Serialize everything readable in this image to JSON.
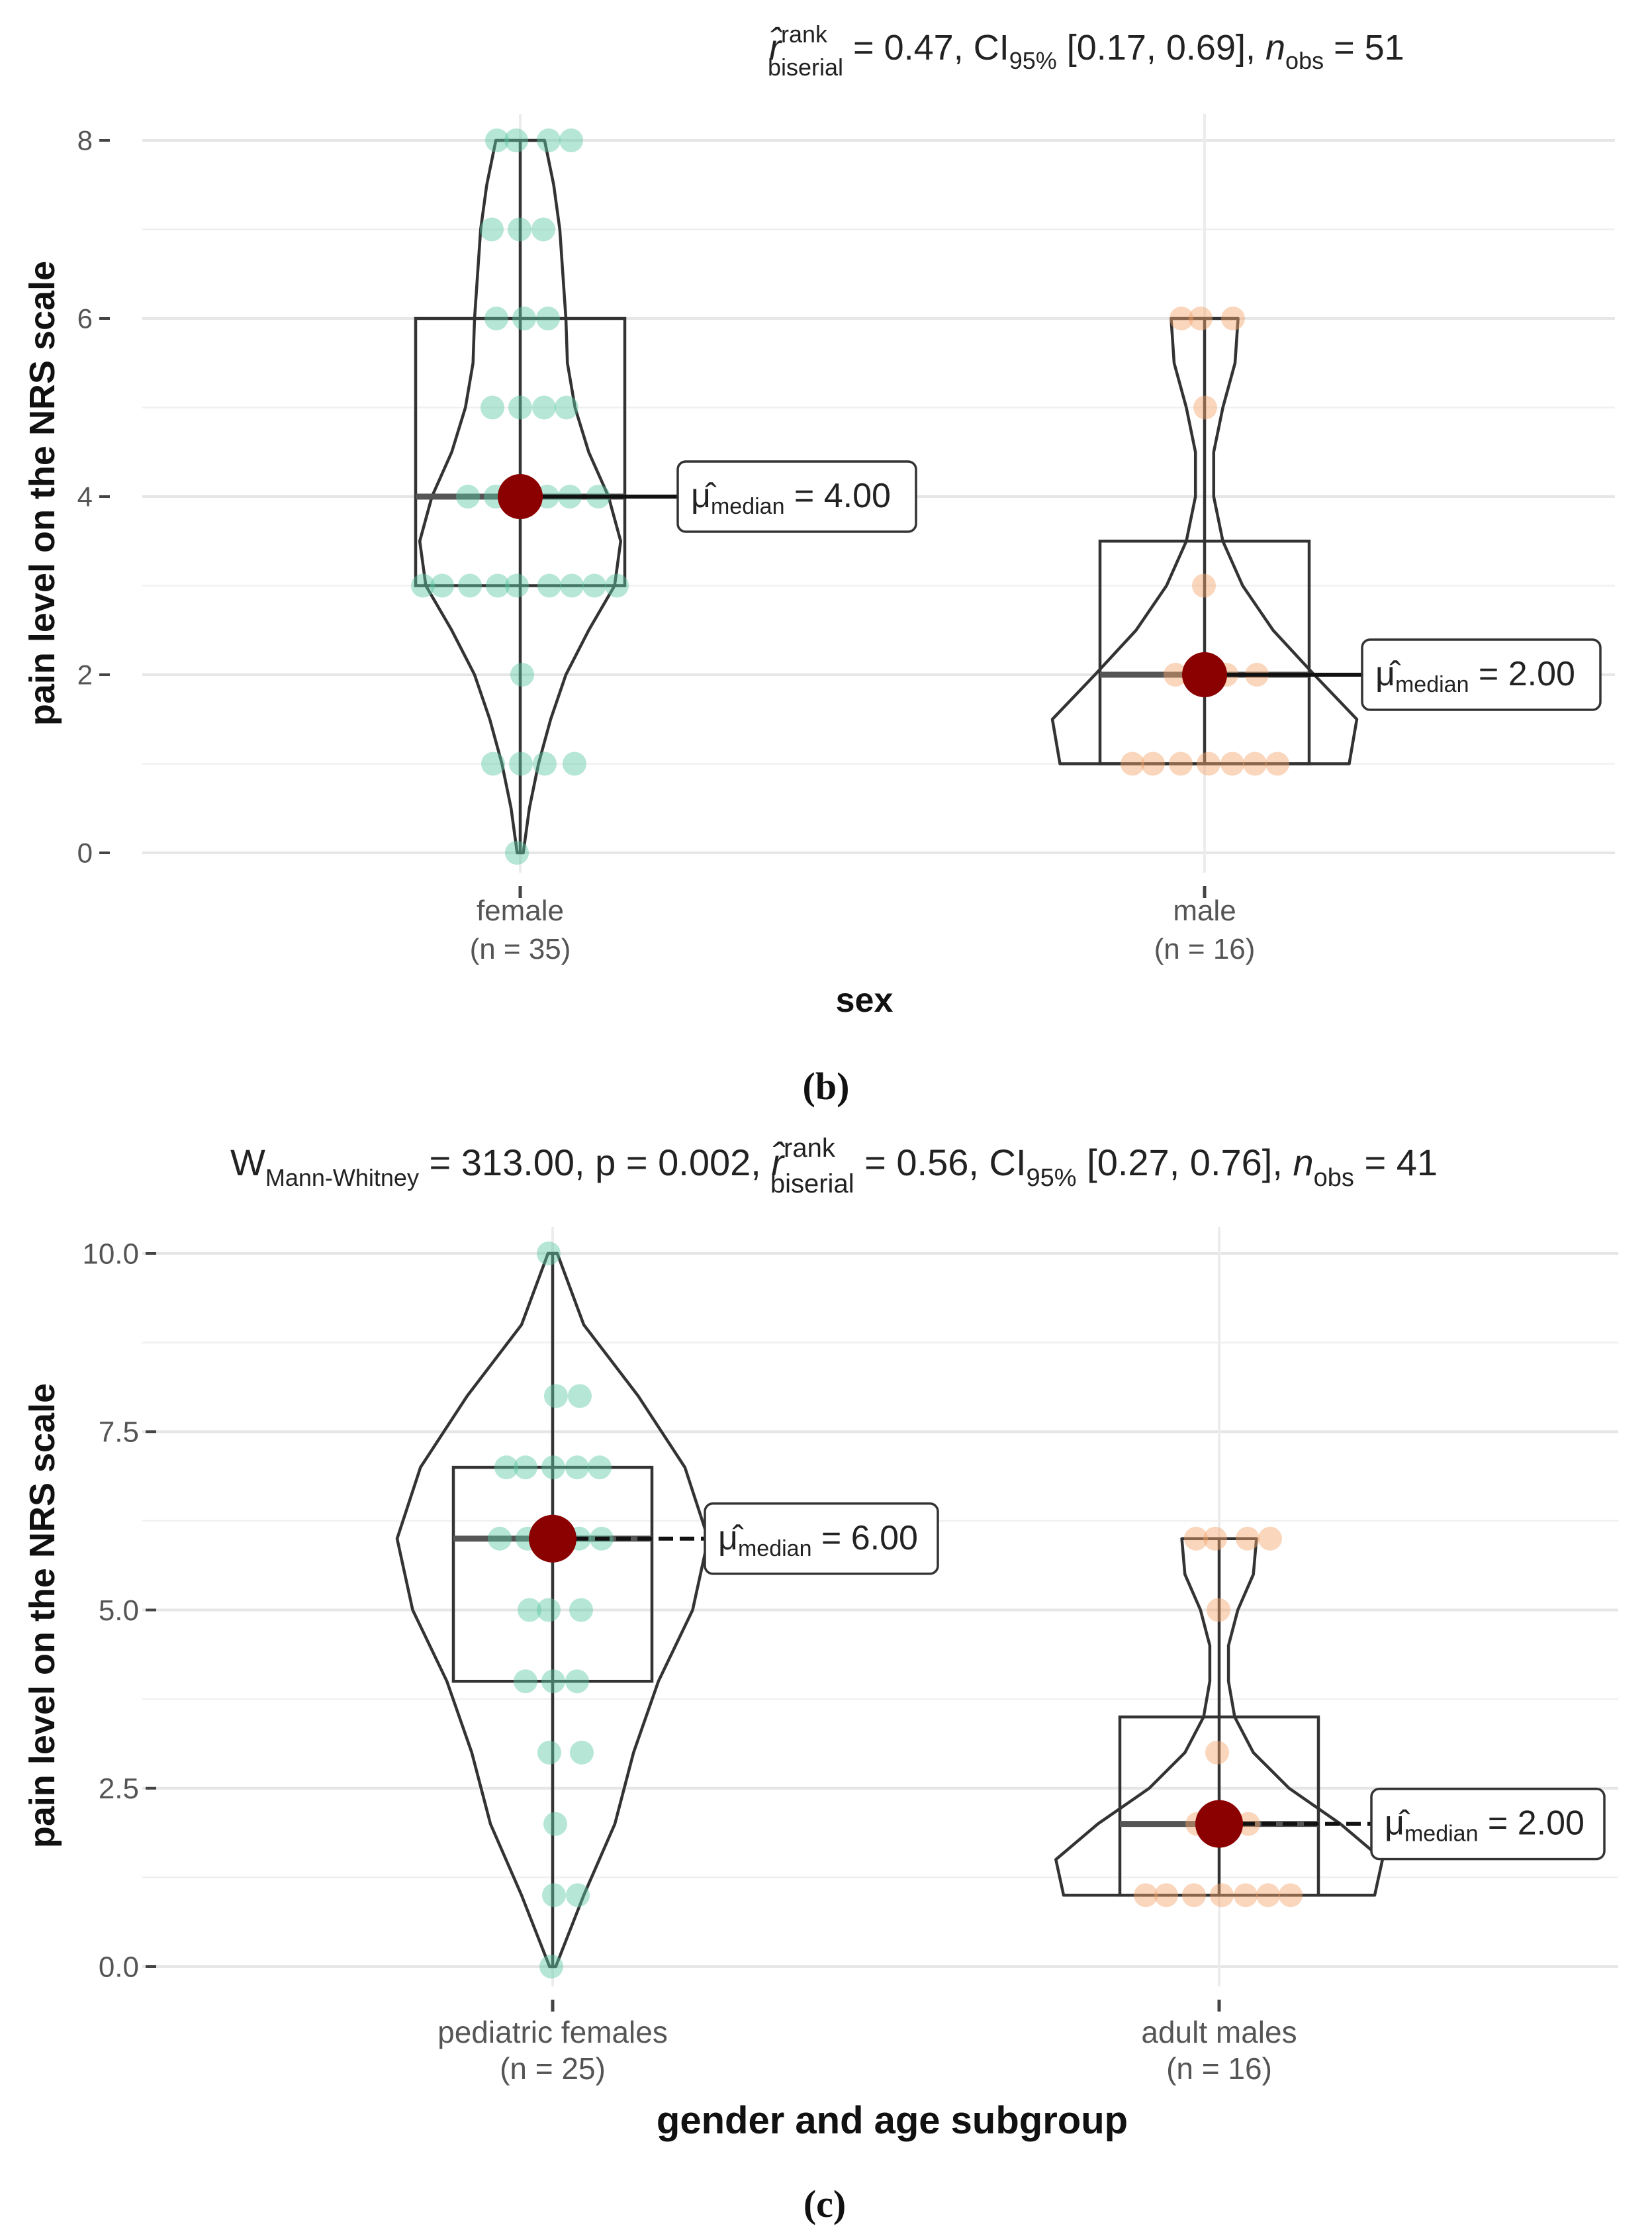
{
  "colors": {
    "female": "#5cc8a4",
    "male": "#f4a46a",
    "median_dot": "#8b0000",
    "grid": "#ebebeb",
    "outline": "#333333"
  },
  "chart_data": [
    {
      "type": "violin-box-scatter",
      "panel_label": "(b)",
      "title_stat": {
        "r_symbol": "r̂",
        "r_sup": "rank",
        "r_sub": "biserial",
        "r_value": " = 0.47, CI",
        "ci_sub": "95%",
        "ci_value": " [0.17, 0.69], ",
        "n_symbol": "n",
        "n_sub": "obs",
        "n_value": " = 51"
      },
      "ylabel": "pain level on the NRS scale",
      "xlabel": "sex",
      "ylim": [
        0,
        8
      ],
      "y_ticks": [
        0,
        2,
        4,
        6,
        8
      ],
      "y_tick_labels": [
        "0",
        "2",
        "4",
        "6",
        "8"
      ],
      "groups": [
        {
          "name": "female",
          "n_label": "(n = 35)",
          "color_key": "female",
          "q1": 3,
          "median": 4,
          "q3": 6,
          "min": 0,
          "max": 8,
          "violin_min": 0,
          "violin_max": 8,
          "violin_profile": [
            [
              0,
              0.02
            ],
            [
              0.5,
              0.06
            ],
            [
              1,
              0.12
            ],
            [
              1.5,
              0.2
            ],
            [
              2,
              0.3
            ],
            [
              2.5,
              0.45
            ],
            [
              3,
              0.62
            ],
            [
              3.5,
              0.66
            ],
            [
              4,
              0.58
            ],
            [
              4.5,
              0.45
            ],
            [
              5,
              0.36
            ],
            [
              5.5,
              0.31
            ],
            [
              6,
              0.3
            ],
            [
              6.5,
              0.28
            ],
            [
              7,
              0.26
            ],
            [
              7.5,
              0.22
            ],
            [
              8,
              0.16
            ]
          ],
          "median_dot": 4,
          "median_label_mu": "μ̂",
          "median_label_sub": "median",
          "median_label_value": " = 4.00",
          "points": [
            8,
            8,
            8,
            8,
            7,
            7,
            7,
            6,
            6,
            6,
            5,
            5,
            5,
            5,
            4,
            4,
            4,
            4,
            4,
            3,
            3,
            3,
            3,
            3,
            3,
            3,
            3,
            3,
            2,
            1,
            1,
            1,
            0,
            1,
            4
          ]
        },
        {
          "name": "male",
          "n_label": "(n = 16)",
          "color_key": "male",
          "q1": 1,
          "median": 2,
          "q3": 3.5,
          "min": 1,
          "max": 6,
          "violin_min": 1,
          "violin_max": 6,
          "violin_profile": [
            [
              1,
              0.95
            ],
            [
              1.5,
              1.0
            ],
            [
              2,
              0.72
            ],
            [
              2.5,
              0.45
            ],
            [
              3,
              0.25
            ],
            [
              3.5,
              0.12
            ],
            [
              4,
              0.06
            ],
            [
              4.5,
              0.06
            ],
            [
              5,
              0.12
            ],
            [
              5.5,
              0.2
            ],
            [
              6,
              0.22
            ]
          ],
          "median_dot": 2,
          "median_label_mu": "μ̂",
          "median_label_sub": "median",
          "median_label_value": " = 2.00",
          "points": [
            6,
            6,
            6,
            5,
            3,
            2,
            2,
            1,
            1,
            1,
            1,
            1,
            1,
            2,
            1,
            2
          ]
        }
      ]
    },
    {
      "type": "violin-box-scatter",
      "panel_label": "(c)",
      "title_stat": {
        "w_symbol": "W",
        "w_sub": "Mann-Whitney",
        "w_value": " = 313.00, p = 0.002, ",
        "r_symbol": "r̂",
        "r_sup": "rank",
        "r_sub": "biserial",
        "r_value": " = 0.56, CI",
        "ci_sub": "95%",
        "ci_value": " [0.27, 0.76], ",
        "n_symbol": "n",
        "n_sub": "obs",
        "n_value": " = 41"
      },
      "ylabel": "pain level on the NRS scale",
      "xlabel": "gender and age subgroup",
      "ylim": [
        0,
        10
      ],
      "y_ticks": [
        0,
        2.5,
        5,
        7.5,
        10
      ],
      "y_tick_labels": [
        "0.0",
        "2.5",
        "5.0",
        "7.5",
        "10.0"
      ],
      "groups": [
        {
          "name": "pediatric females",
          "n_label": "(n = 25)",
          "color_key": "female",
          "q1": 4,
          "median": 6,
          "q3": 7,
          "min": 0,
          "max": 10,
          "violin_min": 0,
          "violin_max": 10,
          "violin_profile": [
            [
              0,
              0.02
            ],
            [
              1,
              0.2
            ],
            [
              2,
              0.4
            ],
            [
              3,
              0.52
            ],
            [
              4,
              0.68
            ],
            [
              5,
              0.9
            ],
            [
              6,
              1.0
            ],
            [
              7,
              0.85
            ],
            [
              8,
              0.55
            ],
            [
              9,
              0.2
            ],
            [
              10,
              0.03
            ]
          ],
          "median_dot": 6,
          "median_label_mu": "μ̂",
          "median_label_sub": "median",
          "median_label_value": " = 6.00",
          "points": [
            10,
            8,
            8,
            7,
            7,
            7,
            7,
            7,
            6,
            6,
            6,
            6,
            6,
            5,
            5,
            5,
            4,
            4,
            4,
            3,
            3,
            2,
            1,
            1,
            0
          ]
        },
        {
          "name": "adult males",
          "n_label": "(n = 16)",
          "color_key": "male",
          "q1": 1,
          "median": 2,
          "q3": 3.5,
          "min": 1,
          "max": 6,
          "violin_min": 1,
          "violin_max": 6,
          "violin_profile": [
            [
              1,
              1.0
            ],
            [
              1.5,
              1.05
            ],
            [
              2,
              0.78
            ],
            [
              2.5,
              0.45
            ],
            [
              3,
              0.22
            ],
            [
              3.5,
              0.1
            ],
            [
              4,
              0.06
            ],
            [
              4.5,
              0.06
            ],
            [
              5,
              0.12
            ],
            [
              5.5,
              0.22
            ],
            [
              6,
              0.24
            ]
          ],
          "median_dot": 2,
          "median_label_mu": "μ̂",
          "median_label_sub": "median",
          "median_label_value": " = 2.00",
          "points": [
            6,
            6,
            6,
            6,
            5,
            3,
            2,
            2,
            1,
            1,
            1,
            1,
            1,
            1,
            2,
            1
          ]
        }
      ]
    }
  ]
}
